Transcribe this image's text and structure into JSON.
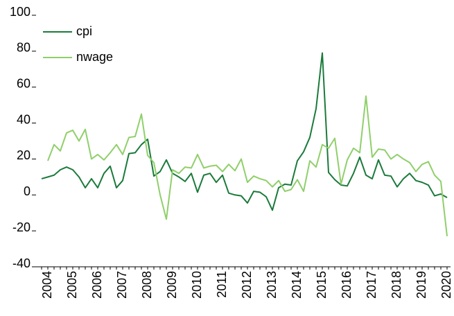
{
  "chart_data": {
    "type": "line",
    "categories": [
      null,
      "2004",
      null,
      null,
      null,
      "2005",
      null,
      null,
      null,
      "2006",
      null,
      null,
      null,
      "2007",
      null,
      null,
      null,
      "2008",
      null,
      null,
      null,
      "2009",
      null,
      null,
      null,
      "2010",
      null,
      null,
      null,
      "2011",
      null,
      null,
      null,
      "2012",
      null,
      null,
      null,
      "2013",
      null,
      null,
      null,
      "2014",
      null,
      null,
      null,
      "2015",
      null,
      null,
      null,
      "2016",
      null,
      null,
      null,
      "2017",
      null,
      null,
      null,
      "2018",
      null,
      null,
      null,
      "2019",
      null,
      null,
      null,
      "2020"
    ],
    "series": [
      {
        "name": "cpi",
        "color": "#1a7a3a",
        "values": [
          9,
          10,
          11,
          14,
          15.5,
          14,
          10,
          4,
          9,
          4,
          12,
          16,
          4,
          8,
          23,
          23.5,
          28,
          31,
          10.5,
          13,
          19.5,
          12,
          10,
          7.5,
          12,
          1.5,
          11,
          12,
          7,
          11,
          1,
          0,
          -0.5,
          -4.5,
          2,
          1.5,
          -1,
          -8.5,
          4,
          6,
          5.5,
          19,
          24,
          32,
          48,
          79,
          12.5,
          8.5,
          5.5,
          5,
          12,
          21,
          11,
          9,
          19.5,
          11,
          10.5,
          4.5,
          9,
          12,
          8,
          7,
          5.5,
          -0.5,
          0.5,
          -1.5
        ]
      },
      {
        "name": "nwage",
        "color": "#8fcf6a",
        "values": [
          null,
          19,
          28,
          24.5,
          34.5,
          36,
          30,
          36.5,
          20,
          22.5,
          19.5,
          23.5,
          28,
          22.5,
          32,
          32.5,
          45,
          22,
          18,
          0,
          -13.5,
          14,
          12,
          15.5,
          15,
          22.5,
          15,
          16,
          16.5,
          13,
          17,
          13.5,
          20,
          7,
          10.5,
          9,
          8,
          4.5,
          8,
          2,
          3,
          8.5,
          2,
          19,
          15.5,
          28,
          26,
          31.5,
          6,
          19.5,
          26,
          23.5,
          55,
          21,
          25.5,
          25,
          20,
          22.5,
          20,
          18,
          13,
          17,
          18.5,
          11,
          7.5,
          -23
        ]
      }
    ],
    "ylim": [
      -40,
      100
    ],
    "yticks": [
      -40,
      -20,
      0,
      20,
      40,
      60,
      80,
      100
    ],
    "grid": false,
    "legend": "top-left"
  }
}
